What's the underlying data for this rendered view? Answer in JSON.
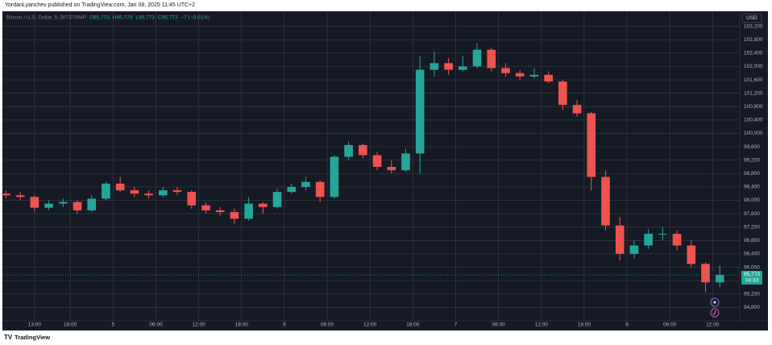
{
  "header": "YordanLyanchev published on TradingView.com, Jan 08, 2025 11:45 UTC+2",
  "footer": "TradingView",
  "currency": "USD",
  "chart_data": {
    "type": "candlestick",
    "title": "Bitcoin / U.S. Dollar, 5, BITSTAMP",
    "ohlc_legend": [
      "O95,773",
      "H95,779",
      "L95,773",
      "C95,773",
      "−7 (−0.01%)"
    ],
    "up_color": "#26a69a",
    "down_color": "#ef5350",
    "grid": true,
    "x": [
      9,
      11,
      13,
      15,
      17,
      19,
      21,
      23,
      25,
      27,
      29,
      31,
      33,
      35,
      37,
      39,
      41,
      43,
      45,
      47,
      49,
      51,
      53,
      55,
      57,
      59,
      61,
      63,
      65,
      67,
      69,
      71,
      73,
      75,
      77,
      79,
      81,
      83,
      85,
      87,
      89,
      91,
      93,
      95,
      97,
      99,
      101,
      103,
      105,
      107,
      109
    ],
    "open": [
      98200,
      98150,
      98100,
      97780,
      97900,
      97950,
      97700,
      98050,
      98500,
      98300,
      98200,
      98150,
      98300,
      98250,
      97850,
      97700,
      97650,
      97450,
      97900,
      97800,
      98250,
      98400,
      98550,
      98100,
      99300,
      99650,
      99350,
      99000,
      98900,
      99400,
      101900,
      102100,
      101900,
      102000,
      102500,
      101950,
      101800,
      101700,
      101750,
      101550,
      100850,
      100600,
      98700,
      97250,
      96400,
      96650,
      97000,
      97000,
      96650,
      96100,
      95550
    ],
    "high": [
      98300,
      98250,
      98150,
      98000,
      98050,
      98000,
      98150,
      98550,
      98700,
      98400,
      98300,
      98400,
      98400,
      98300,
      97950,
      97800,
      97750,
      98100,
      97950,
      98350,
      98500,
      98700,
      98600,
      99350,
      99750,
      99700,
      99450,
      99200,
      99550,
      102300,
      102450,
      102250,
      102300,
      102700,
      102550,
      102100,
      101900,
      101950,
      101850,
      101600,
      101000,
      100650,
      98900,
      97500,
      96800,
      97150,
      97200,
      97100,
      96800,
      96150,
      96050
    ],
    "low": [
      98050,
      98000,
      97650,
      97700,
      97800,
      97600,
      97650,
      98000,
      98250,
      98100,
      98050,
      98100,
      98150,
      97750,
      97600,
      97550,
      97300,
      97400,
      97600,
      97750,
      98200,
      98300,
      97950,
      98050,
      99200,
      99250,
      98900,
      98800,
      98850,
      98800,
      101700,
      101750,
      101850,
      101950,
      101850,
      101700,
      101600,
      101650,
      101500,
      100700,
      100500,
      98300,
      97100,
      96200,
      96250,
      96550,
      96800,
      96500,
      96000,
      95250,
      95400
    ],
    "close": [
      98150,
      98100,
      97780,
      97900,
      97950,
      97700,
      98050,
      98500,
      98300,
      98200,
      98150,
      98300,
      98250,
      97850,
      97700,
      97650,
      97450,
      97900,
      97800,
      98250,
      98400,
      98550,
      98100,
      99300,
      99650,
      99350,
      99000,
      98900,
      99400,
      101900,
      102100,
      101900,
      102000,
      102500,
      101950,
      101800,
      101700,
      101750,
      101550,
      100850,
      100600,
      98700,
      97250,
      96400,
      96650,
      97000,
      97000,
      96650,
      96100,
      95550,
      95773
    ],
    "xlim": [
      8.5,
      111.8
    ],
    "xticks": [
      {
        "value": 13,
        "label": "13:00"
      },
      {
        "value": 18,
        "label": "18:00"
      },
      {
        "value": 24,
        "label": "5"
      },
      {
        "value": 30,
        "label": "06:00"
      },
      {
        "value": 36,
        "label": "12:00"
      },
      {
        "value": 42,
        "label": "18:00"
      },
      {
        "value": 48,
        "label": "6"
      },
      {
        "value": 54,
        "label": "06:00"
      },
      {
        "value": 60,
        "label": "12:00"
      },
      {
        "value": 66,
        "label": "18:00"
      },
      {
        "value": 72,
        "label": "7"
      },
      {
        "value": 78,
        "label": "06:00"
      },
      {
        "value": 84,
        "label": "12:00"
      },
      {
        "value": 90,
        "label": "18:00"
      },
      {
        "value": 96,
        "label": "8"
      },
      {
        "value": 102,
        "label": "06:00"
      },
      {
        "value": 108,
        "label": "12:00"
      }
    ],
    "ylim": [
      94400,
      103600
    ],
    "yticks": [
      {
        "value": 94800,
        "label": "94,800"
      },
      {
        "value": 95200,
        "label": "95,200"
      },
      {
        "value": 95600,
        "label": "95,600"
      },
      {
        "value": 96000,
        "label": "96,000"
      },
      {
        "value": 96400,
        "label": "96,400"
      },
      {
        "value": 96800,
        "label": "96,800"
      },
      {
        "value": 97200,
        "label": "97,200"
      },
      {
        "value": 97600,
        "label": "97,600"
      },
      {
        "value": 98000,
        "label": "98,000"
      },
      {
        "value": 98400,
        "label": "98,400"
      },
      {
        "value": 98800,
        "label": "98,800"
      },
      {
        "value": 99200,
        "label": "99,200"
      },
      {
        "value": 99600,
        "label": "99,600"
      },
      {
        "value": 100000,
        "label": "100,000"
      },
      {
        "value": 100400,
        "label": "100,400"
      },
      {
        "value": 100800,
        "label": "100,800"
      },
      {
        "value": 101200,
        "label": "101,200"
      },
      {
        "value": 101600,
        "label": "101,600"
      },
      {
        "value": 102000,
        "label": "102,000"
      },
      {
        "value": 102400,
        "label": "102,400"
      },
      {
        "value": 102800,
        "label": "102,800"
      },
      {
        "value": 103200,
        "label": "103,200"
      }
    ],
    "last_price": {
      "value": 95773,
      "label": "95,773"
    },
    "countdown": "04:33"
  }
}
